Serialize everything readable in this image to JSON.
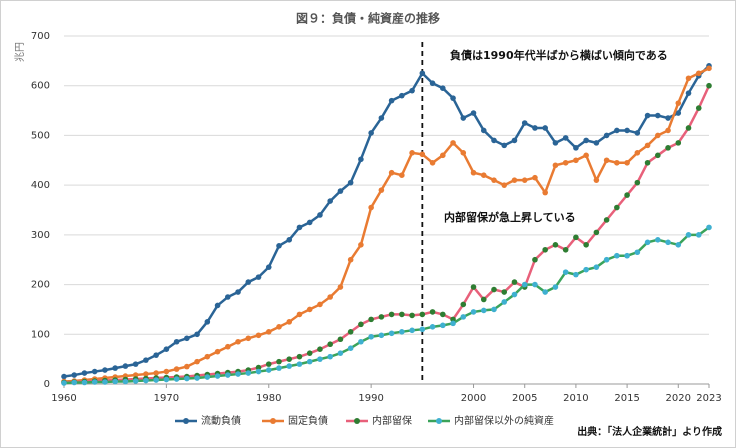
{
  "chart_data": {
    "type": "line",
    "title": "図９：負債・純資産の推移",
    "y_label": "兆円",
    "annotations": [
      "負債は1990年代半ばから横ばい傾向である",
      "内部留保が急上昇している"
    ],
    "source": "出典：「法人企業統計」より作成",
    "vline_x": 1995,
    "x": [
      1960,
      1961,
      1962,
      1963,
      1964,
      1965,
      1966,
      1967,
      1968,
      1969,
      1970,
      1971,
      1972,
      1973,
      1974,
      1975,
      1976,
      1977,
      1978,
      1979,
      1980,
      1981,
      1982,
      1983,
      1984,
      1985,
      1986,
      1987,
      1988,
      1989,
      1990,
      1991,
      1992,
      1993,
      1994,
      1995,
      1996,
      1997,
      1998,
      1999,
      2000,
      2001,
      2002,
      2003,
      2004,
      2005,
      2006,
      2007,
      2008,
      2009,
      2010,
      2011,
      2012,
      2013,
      2014,
      2015,
      2016,
      2017,
      2018,
      2019,
      2020,
      2021,
      2022,
      2023
    ],
    "xlim": [
      1960,
      2023
    ],
    "xticks": [
      1960,
      1970,
      1980,
      1990,
      2000,
      2005,
      2010,
      2015,
      2020,
      2023
    ],
    "ylim": [
      0,
      700
    ],
    "yticks": [
      0,
      100,
      200,
      300,
      400,
      500,
      600,
      700
    ],
    "grid": true,
    "series": [
      {
        "name": "流動負債",
        "color": "#2a6496",
        "marker_color": "#2a6496",
        "values": [
          15,
          18,
          22,
          25,
          28,
          32,
          36,
          40,
          48,
          58,
          70,
          85,
          92,
          100,
          125,
          158,
          175,
          185,
          205,
          215,
          235,
          278,
          290,
          315,
          325,
          340,
          368,
          388,
          405,
          452,
          505,
          535,
          570,
          580,
          590,
          625,
          605,
          595,
          575,
          535,
          545,
          510,
          490,
          480,
          490,
          525,
          515,
          515,
          485,
          495,
          475,
          490,
          485,
          500,
          510,
          510,
          505,
          540,
          540,
          535,
          545,
          585,
          620,
          640
        ]
      },
      {
        "name": "固定負債",
        "color": "#e97b32",
        "marker_color": "#e97b32",
        "values": [
          5,
          6,
          8,
          10,
          12,
          14,
          16,
          18,
          20,
          22,
          25,
          30,
          35,
          45,
          55,
          65,
          75,
          85,
          92,
          98,
          105,
          115,
          125,
          140,
          150,
          160,
          175,
          195,
          250,
          280,
          355,
          390,
          425,
          420,
          465,
          462,
          445,
          460,
          485,
          465,
          425,
          420,
          410,
          400,
          410,
          410,
          415,
          385,
          440,
          445,
          450,
          460,
          410,
          450,
          445,
          445,
          465,
          480,
          500,
          510,
          565,
          615,
          625,
          635
        ]
      },
      {
        "name": "内部留保",
        "color": "#e8607a",
        "marker_color": "#2e7d32",
        "values": [
          3,
          4,
          5,
          6,
          7,
          8,
          9,
          10,
          11,
          12,
          13,
          14,
          15,
          17,
          19,
          21,
          23,
          25,
          28,
          33,
          40,
          45,
          50,
          55,
          62,
          70,
          80,
          90,
          105,
          120,
          130,
          135,
          140,
          140,
          138,
          140,
          145,
          140,
          130,
          160,
          195,
          170,
          190,
          185,
          205,
          195,
          250,
          270,
          280,
          270,
          295,
          280,
          305,
          330,
          355,
          380,
          405,
          445,
          460,
          475,
          485,
          515,
          555,
          600
        ]
      },
      {
        "name": "内部留保以外の純資産",
        "color": "#3aa35a",
        "marker_color": "#3fb0d0",
        "values": [
          2,
          3,
          3,
          4,
          4,
          5,
          5,
          6,
          7,
          8,
          9,
          10,
          11,
          12,
          14,
          16,
          18,
          20,
          22,
          25,
          28,
          32,
          36,
          40,
          45,
          50,
          55,
          62,
          72,
          85,
          95,
          98,
          102,
          105,
          108,
          110,
          115,
          118,
          122,
          135,
          145,
          148,
          150,
          165,
          180,
          200,
          200,
          185,
          195,
          225,
          220,
          230,
          235,
          250,
          258,
          258,
          265,
          285,
          290,
          285,
          280,
          300,
          300,
          315
        ]
      }
    ]
  }
}
